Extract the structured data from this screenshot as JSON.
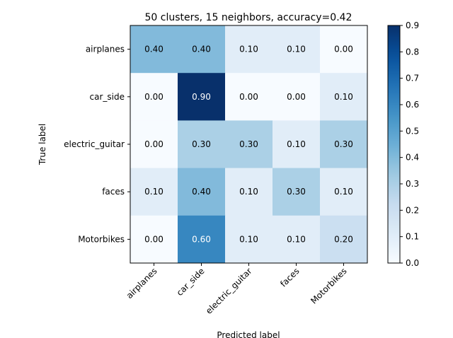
{
  "chart_data": {
    "type": "heatmap",
    "title": "50 clusters, 15 neighbors, accuracy=0.42",
    "xlabel": "Predicted label",
    "ylabel": "True label",
    "x_categories": [
      "airplanes",
      "car_side",
      "electric_guitar",
      "faces",
      "Motorbikes"
    ],
    "y_categories": [
      "airplanes",
      "car_side",
      "electric_guitar",
      "faces",
      "Motorbikes"
    ],
    "values": [
      [
        0.4,
        0.4,
        0.1,
        0.1,
        0.0
      ],
      [
        0.0,
        0.9,
        0.0,
        0.0,
        0.1
      ],
      [
        0.0,
        0.3,
        0.3,
        0.1,
        0.3
      ],
      [
        0.1,
        0.4,
        0.1,
        0.3,
        0.1
      ],
      [
        0.0,
        0.6,
        0.1,
        0.1,
        0.2
      ]
    ],
    "value_labels": [
      [
        "0.40",
        "0.40",
        "0.10",
        "0.10",
        "0.00"
      ],
      [
        "0.00",
        "0.90",
        "0.00",
        "0.00",
        "0.10"
      ],
      [
        "0.00",
        "0.30",
        "0.30",
        "0.10",
        "0.30"
      ],
      [
        "0.10",
        "0.40",
        "0.10",
        "0.30",
        "0.10"
      ],
      [
        "0.00",
        "0.60",
        "0.10",
        "0.10",
        "0.20"
      ]
    ],
    "colormap": "Blues",
    "vmin": 0.0,
    "vmax": 0.9,
    "colorbar_ticks": [
      "0.0",
      "0.1",
      "0.2",
      "0.3",
      "0.4",
      "0.5",
      "0.6",
      "0.7",
      "0.8",
      "0.9"
    ],
    "x_tick_rotation": 45,
    "grid": false
  }
}
